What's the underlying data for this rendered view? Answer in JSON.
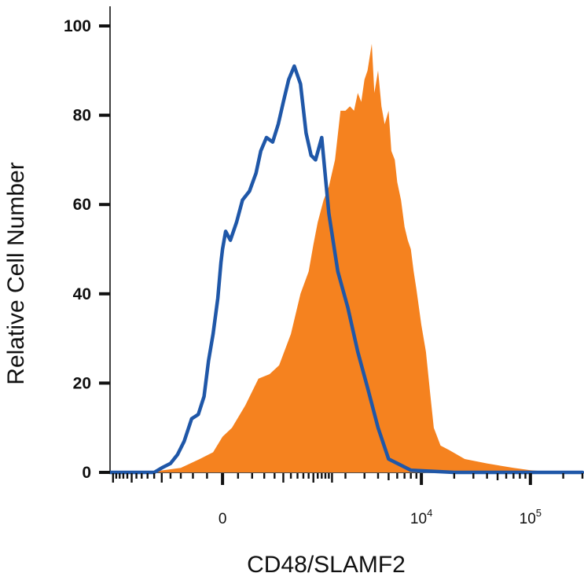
{
  "chart_data": {
    "type": "area",
    "title": "",
    "xlabel": "CD48/SLAMF2",
    "ylabel": "Relative Cell Number",
    "x_scale": "biexponential",
    "xlim": [
      -1600,
      300000
    ],
    "ylim": [
      0,
      100
    ],
    "yticks": [
      0,
      20,
      40,
      60,
      80,
      100
    ],
    "xticks": [
      {
        "value": 0,
        "base": "0",
        "exp": ""
      },
      {
        "value": 10000,
        "base": "10",
        "exp": "4"
      },
      {
        "value": 100000,
        "base": "10",
        "exp": "5"
      }
    ],
    "grid": false,
    "legend": "none",
    "series": [
      {
        "style": "filled",
        "color": "#f5821f",
        "x": [
          -1600,
          -700,
          -300,
          -150,
          -60,
          0,
          60,
          150,
          250,
          350,
          450,
          600,
          750,
          900,
          1000,
          1100,
          1250,
          1400,
          1600,
          1800,
          2000,
          2200,
          2400,
          2600,
          2800,
          3000,
          3200,
          3500,
          3700,
          4000,
          4300,
          4600,
          5000,
          5300,
          5700,
          6000,
          6500,
          7000,
          7500,
          8000,
          8500,
          9000,
          10000,
          11000,
          12000,
          13000,
          15000,
          18000,
          25000,
          40000,
          70000,
          100000,
          140000,
          200000,
          300000
        ],
        "values": [
          0,
          0,
          1,
          3,
          4.5,
          8,
          10,
          15,
          21,
          22,
          24,
          31,
          40,
          45,
          51,
          56,
          61,
          64,
          70,
          81,
          81,
          82,
          81,
          85,
          83,
          88,
          90,
          96,
          85,
          90,
          82,
          78,
          81,
          72,
          70,
          65,
          61,
          55,
          52,
          50,
          45,
          41,
          33,
          27,
          18,
          10,
          6,
          5,
          3,
          2,
          1,
          0.5,
          0.2,
          0,
          0
        ]
      },
      {
        "style": "line",
        "color": "#1f57a8",
        "x": [
          -1600,
          -600,
          -500,
          -400,
          -330,
          -270,
          -210,
          -160,
          -120,
          -90,
          -60,
          -30,
          -10,
          0,
          20,
          50,
          90,
          130,
          180,
          230,
          270,
          320,
          380,
          440,
          500,
          570,
          650,
          750,
          850,
          950,
          1050,
          1200,
          1400,
          1700,
          2100,
          2600,
          3200,
          4000,
          5000,
          8000,
          20000,
          100000,
          300000
        ],
        "values": [
          0,
          0,
          1,
          2,
          4,
          7,
          12,
          13,
          17,
          25,
          31,
          39,
          47,
          50,
          54,
          52,
          56,
          61,
          63,
          67,
          72,
          75,
          74,
          78,
          83,
          88,
          91,
          87,
          76,
          71,
          70,
          75,
          58,
          45,
          37,
          27,
          19,
          10,
          3,
          0.5,
          0,
          0,
          0
        ]
      }
    ]
  }
}
